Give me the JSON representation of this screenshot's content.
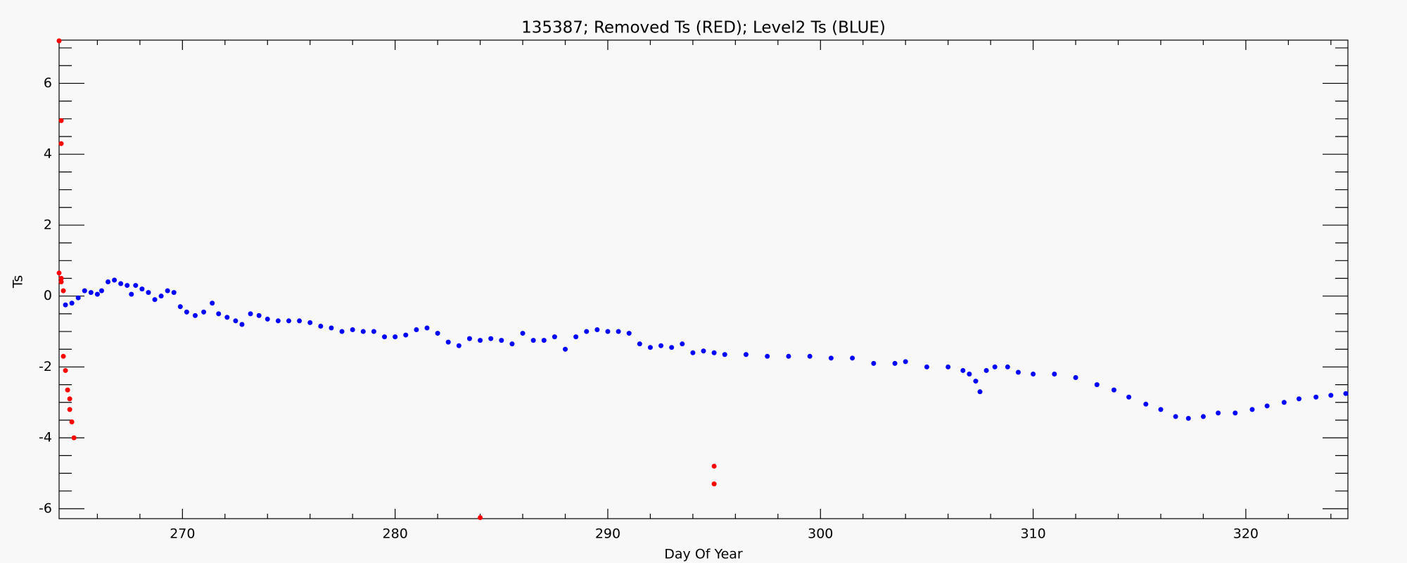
{
  "chart_data": {
    "type": "scatter",
    "title": "135387; Removed Ts (RED); Level2 Ts (BLUE)",
    "x_label": "Day Of Year",
    "y_label": "Ts",
    "xlim": [
      264.2,
      324.8
    ],
    "xticks": [
      270,
      280,
      290,
      300,
      310,
      320
    ],
    "xminorticks": [
      266,
      268,
      272,
      274,
      276,
      278,
      282,
      284,
      286,
      288,
      292,
      294,
      296,
      298,
      302,
      304,
      306,
      308,
      312,
      314,
      316,
      318,
      322,
      324
    ],
    "ylim": [
      -6.28,
      7.22
    ],
    "yticks": [
      -6,
      -4,
      -2,
      0,
      2,
      4,
      6
    ],
    "yminorticks": [
      -5.5,
      -5,
      -4.5,
      -3.5,
      -3,
      -2.5,
      -1.5,
      -1,
      -0.5,
      0.5,
      1,
      1.5,
      2.5,
      3,
      3.5,
      4.5,
      5,
      5.5,
      6.5,
      7
    ],
    "series": [
      {
        "color": "#0000ff",
        "x": [
          264.5,
          264.8,
          265.1,
          265.4,
          265.7,
          266.0,
          266.2,
          266.5,
          266.8,
          267.1,
          267.4,
          267.6,
          267.8,
          268.1,
          268.4,
          268.7,
          269.0,
          269.3,
          269.6,
          269.9,
          270.2,
          270.6,
          271.0,
          271.4,
          271.7,
          272.1,
          272.5,
          272.8,
          273.2,
          273.6,
          274.0,
          274.5,
          275.0,
          275.5,
          276.0,
          276.5,
          277.0,
          277.5,
          278.0,
          278.5,
          279.0,
          279.5,
          280.0,
          280.5,
          281.0,
          281.5,
          282.0,
          282.5,
          283.0,
          283.5,
          284.0,
          284.5,
          285.0,
          285.5,
          286.0,
          286.5,
          287.0,
          287.5,
          288.0,
          288.5,
          289.0,
          289.5,
          290.0,
          290.5,
          291.0,
          291.5,
          292.0,
          292.5,
          293.0,
          293.5,
          294.0,
          294.5,
          295.0,
          295.5,
          296.5,
          297.5,
          298.5,
          299.5,
          300.5,
          301.5,
          302.5,
          303.5,
          304.0,
          305.0,
          306.0,
          306.7,
          307.0,
          307.3,
          307.5,
          307.8,
          308.2,
          308.8,
          309.3,
          310.0,
          311.0,
          312.0,
          313.0,
          313.8,
          314.5,
          315.3,
          316.0,
          316.7,
          317.3,
          318.0,
          318.7,
          319.5,
          320.3,
          321.0,
          321.8,
          322.5,
          323.3,
          324.0,
          324.7
        ],
        "values": [
          -0.25,
          -0.2,
          -0.05,
          0.15,
          0.1,
          0.05,
          0.15,
          0.4,
          0.45,
          0.35,
          0.3,
          0.05,
          0.3,
          0.2,
          0.1,
          -0.1,
          0.0,
          0.15,
          0.1,
          -0.3,
          -0.45,
          -0.55,
          -0.45,
          -0.2,
          -0.5,
          -0.6,
          -0.7,
          -0.8,
          -0.5,
          -0.55,
          -0.65,
          -0.7,
          -0.7,
          -0.7,
          -0.75,
          -0.85,
          -0.9,
          -1.0,
          -0.95,
          -1.0,
          -1.0,
          -1.15,
          -1.15,
          -1.1,
          -0.95,
          -0.9,
          -1.05,
          -1.3,
          -1.4,
          -1.2,
          -1.25,
          -1.2,
          -1.25,
          -1.35,
          -1.05,
          -1.25,
          -1.25,
          -1.15,
          -1.5,
          -1.15,
          -1.0,
          -0.95,
          -1.0,
          -1.0,
          -1.05,
          -1.35,
          -1.45,
          -1.4,
          -1.45,
          -1.35,
          -1.6,
          -1.55,
          -1.6,
          -1.65,
          -1.65,
          -1.7,
          -1.7,
          -1.7,
          -1.75,
          -1.75,
          -1.9,
          -1.9,
          -1.85,
          -2.0,
          -2.0,
          -2.1,
          -2.2,
          -2.4,
          -2.7,
          -2.1,
          -2.0,
          -2.0,
          -2.15,
          -2.2,
          -2.2,
          -2.3,
          -2.5,
          -2.65,
          -2.85,
          -3.05,
          -3.2,
          -3.4,
          -3.45,
          -3.4,
          -3.3,
          -3.3,
          -3.2,
          -3.1,
          -3.0,
          -2.9,
          -2.85,
          -2.8,
          -2.75
        ]
      },
      {
        "color": "#ff0000",
        "x": [
          264.2,
          264.3,
          264.3,
          264.2,
          264.3,
          264.3,
          264.4,
          264.4,
          264.5,
          264.6,
          264.7,
          264.7,
          264.8,
          264.9,
          284.0,
          295.0,
          295.0
        ],
        "values": [
          7.2,
          4.95,
          4.3,
          0.65,
          0.5,
          0.4,
          0.15,
          -1.7,
          -2.1,
          -2.65,
          -2.9,
          -3.2,
          -3.55,
          -4.0,
          -6.25,
          -4.8,
          -5.3
        ]
      }
    ]
  }
}
